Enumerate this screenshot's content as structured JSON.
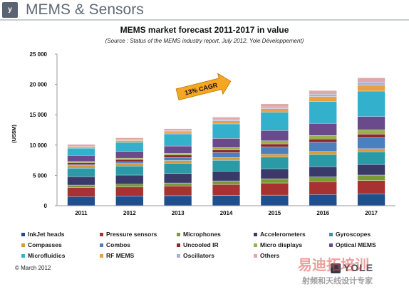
{
  "header": {
    "title": "MEMS & Sensors",
    "logo_text": "y"
  },
  "footer": {
    "copyright": "© March 2012",
    "brand": "YOLE",
    "watermark_main": "易迪拓培训",
    "watermark_sub": "射频和天线设计专家"
  },
  "chart_data": {
    "type": "bar",
    "stacked": true,
    "title": "MEMS market forecast 2011-2017 in value",
    "subtitle": "(Source : Status of the MEMS industry report, July 2012, Yole Développement)",
    "xlabel": "",
    "ylabel": "(US$M)",
    "ylim": [
      0,
      25000
    ],
    "yticks": [
      "0",
      "5 000",
      "10 000",
      "15 000",
      "20 000",
      "25 000"
    ],
    "ytick_values": [
      0,
      5000,
      10000,
      15000,
      20000,
      25000
    ],
    "categories": [
      "2011",
      "2012",
      "2013",
      "2014",
      "2015",
      "2016",
      "2017"
    ],
    "grid": false,
    "legend_position": "bottom",
    "annotation": "13% CAGR",
    "series": [
      {
        "name": "InkJet heads",
        "color": "#1f4f8f",
        "values": [
          1500,
          1600,
          1650,
          1700,
          1750,
          1850,
          1950
        ]
      },
      {
        "name": "Pressure sensors",
        "color": "#a83232",
        "values": [
          1500,
          1500,
          1600,
          1800,
          2000,
          2100,
          2200
        ]
      },
      {
        "name": "Microphones",
        "color": "#7a9a3a",
        "values": [
          400,
          450,
          500,
          600,
          700,
          800,
          900
        ]
      },
      {
        "name": "Accelerometers",
        "color": "#3a3a6a",
        "values": [
          1400,
          1500,
          1550,
          1600,
          1650,
          1700,
          1750
        ]
      },
      {
        "name": "Gyroscopes",
        "color": "#2a9aa6",
        "values": [
          1400,
          1500,
          1700,
          1800,
          1900,
          2000,
          2100
        ]
      },
      {
        "name": "Compasses",
        "color": "#d99a3a",
        "values": [
          400,
          400,
          450,
          450,
          500,
          500,
          500
        ]
      },
      {
        "name": "Combos",
        "color": "#4a7fc0",
        "values": [
          200,
          300,
          500,
          800,
          1200,
          1500,
          1800
        ]
      },
      {
        "name": "Uncooled IR",
        "color": "#8a2a2a",
        "values": [
          300,
          350,
          400,
          450,
          500,
          550,
          600
        ]
      },
      {
        "name": "Micro displays",
        "color": "#9ab04a",
        "values": [
          200,
          250,
          300,
          400,
          500,
          600,
          700
        ]
      },
      {
        "name": "Optical MEMS",
        "color": "#6a4a8a",
        "values": [
          1000,
          1100,
          1200,
          1500,
          1700,
          2000,
          2200
        ]
      },
      {
        "name": "Microfluidics",
        "color": "#33b0cc",
        "values": [
          1200,
          1500,
          2000,
          2400,
          3000,
          3600,
          4200
        ]
      },
      {
        "name": "RF MEMS",
        "color": "#e8a040",
        "values": [
          200,
          300,
          350,
          500,
          600,
          800,
          1000
        ]
      },
      {
        "name": "Oscillators",
        "color": "#aab0d8",
        "values": [
          50,
          100,
          150,
          200,
          300,
          400,
          500
        ]
      },
      {
        "name": "Others",
        "color": "#e0a8a8",
        "values": [
          350,
          350,
          350,
          400,
          500,
          600,
          700
        ]
      }
    ]
  }
}
